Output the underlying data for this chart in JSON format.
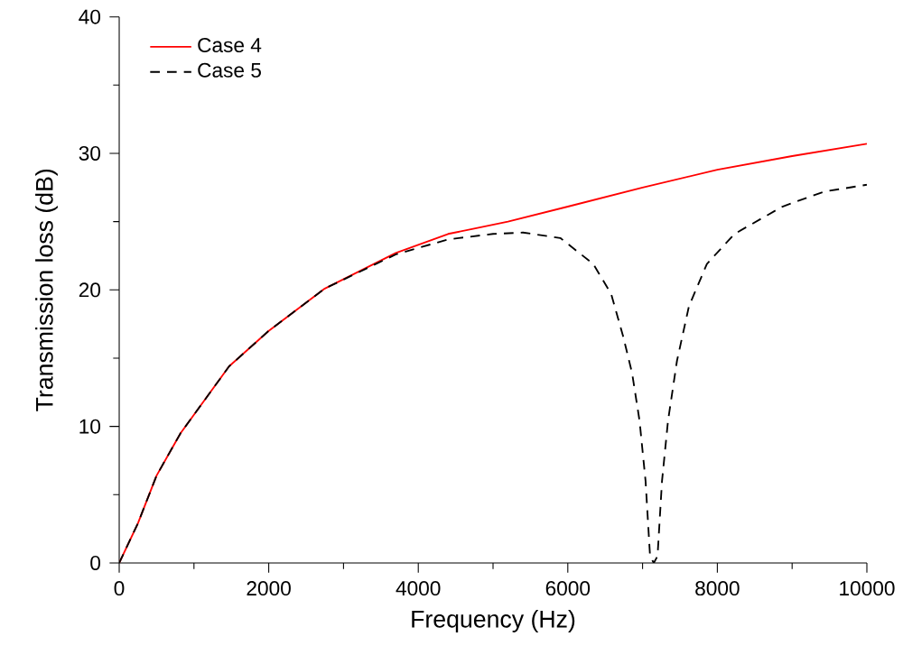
{
  "chart_data": {
    "type": "line",
    "xlabel": "Frequency (Hz)",
    "ylabel": "Transmission loss (dB)",
    "xlim": [
      0,
      10000
    ],
    "ylim": [
      0,
      40
    ],
    "xticks": [
      0,
      2000,
      4000,
      6000,
      8000,
      10000
    ],
    "yticks": [
      0,
      10,
      20,
      30,
      40
    ],
    "grid": false,
    "legend": "top left",
    "series": [
      {
        "name": "Case 4",
        "color": "#ff0000",
        "line_style": "solid",
        "x": [
          0,
          250,
          500,
          820,
          1470,
          2000,
          2750,
          3700,
          4400,
          5200,
          6000,
          7000,
          8000,
          9000,
          10000
        ],
        "values": [
          0,
          2.9,
          6.4,
          9.5,
          14.4,
          17.0,
          20.1,
          22.7,
          24.1,
          25.0,
          26.1,
          27.5,
          28.8,
          29.8,
          30.7
        ]
      },
      {
        "name": "Case 5",
        "color": "#000000",
        "line_style": "dashed",
        "x": [
          0,
          250,
          500,
          820,
          1470,
          2000,
          2750,
          3700,
          4400,
          5000,
          5400,
          5900,
          6340,
          6580,
          6740,
          6860,
          6960,
          7040,
          7100,
          7150,
          7200,
          7260,
          7340,
          7460,
          7620,
          7860,
          8230,
          8870,
          9430,
          10000
        ],
        "values": [
          0,
          2.9,
          6.4,
          9.5,
          14.4,
          17.0,
          20.1,
          22.6,
          23.7,
          24.1,
          24.2,
          23.8,
          21.9,
          19.7,
          16.6,
          13.9,
          10.4,
          6.0,
          0.5,
          0,
          0.5,
          6.0,
          10.4,
          14.8,
          18.8,
          21.9,
          24.1,
          26.1,
          27.2,
          27.7
        ]
      }
    ]
  }
}
